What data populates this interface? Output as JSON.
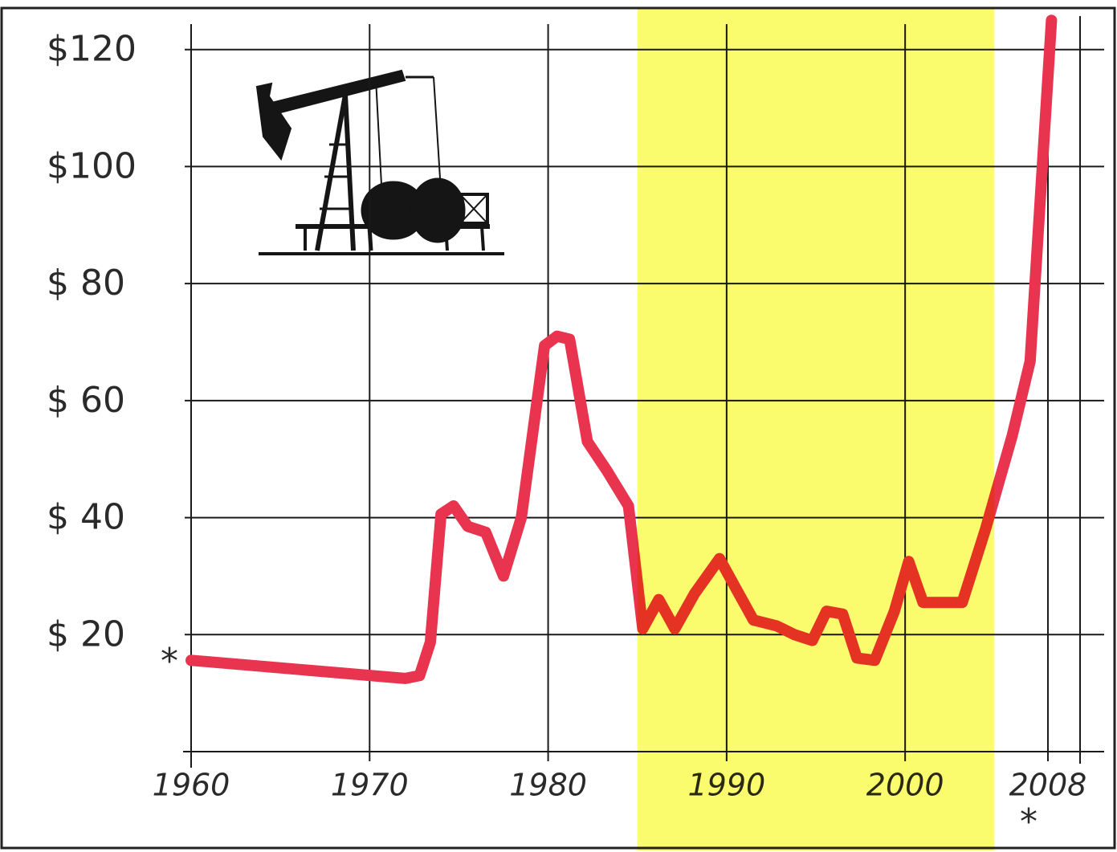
{
  "chart_data": {
    "type": "line",
    "x": [
      1960,
      1972,
      1972.8,
      1973.4,
      1974,
      1974.7,
      1975.5,
      1976.5,
      1977.5,
      1978.5,
      1979.8,
      1980.5,
      1981.2,
      1982.2,
      1983.3,
      1984.5,
      1985.3,
      1986.2,
      1987.1,
      1988.2,
      1989.6,
      1990.5,
      1991.5,
      1992.8,
      1993.8,
      1994.8,
      1995.6,
      1996.5,
      1997.3,
      1998.3,
      1999.4,
      2000.2,
      2001,
      2002,
      2003.2,
      2004.5,
      2006,
      2007,
      2008.2
    ],
    "values": [
      15.6,
      12.5,
      13,
      18.7,
      40.6,
      42,
      38.5,
      37.5,
      30,
      40,
      69.4,
      71,
      70.5,
      53,
      48,
      42,
      21,
      26,
      21,
      27,
      33,
      28,
      22.5,
      21.5,
      20,
      19,
      24,
      23.5,
      16,
      15.6,
      24,
      32.5,
      25.5,
      25.5,
      25.5,
      38,
      54,
      66.7,
      125
    ],
    "color": "#e8344f",
    "xlim": [
      1960,
      2009.8
    ],
    "ylim": [
      0,
      126
    ],
    "xticks": [
      1960,
      1970,
      1980,
      1990,
      2000,
      2008
    ],
    "yticks": [
      {
        "value": 20,
        "label": "$ 20"
      },
      {
        "value": 40,
        "label": "$ 40"
      },
      {
        "value": 60,
        "label": "$ 60"
      },
      {
        "value": 80,
        "label": "$ 80"
      },
      {
        "value": 100,
        "label": "$100"
      },
      {
        "value": 120,
        "label": "$120"
      }
    ],
    "grid": true,
    "highlight": {
      "x": [
        1985,
        2005
      ],
      "color": "#fbfb6e"
    },
    "annotations": [
      "*",
      "*"
    ]
  }
}
